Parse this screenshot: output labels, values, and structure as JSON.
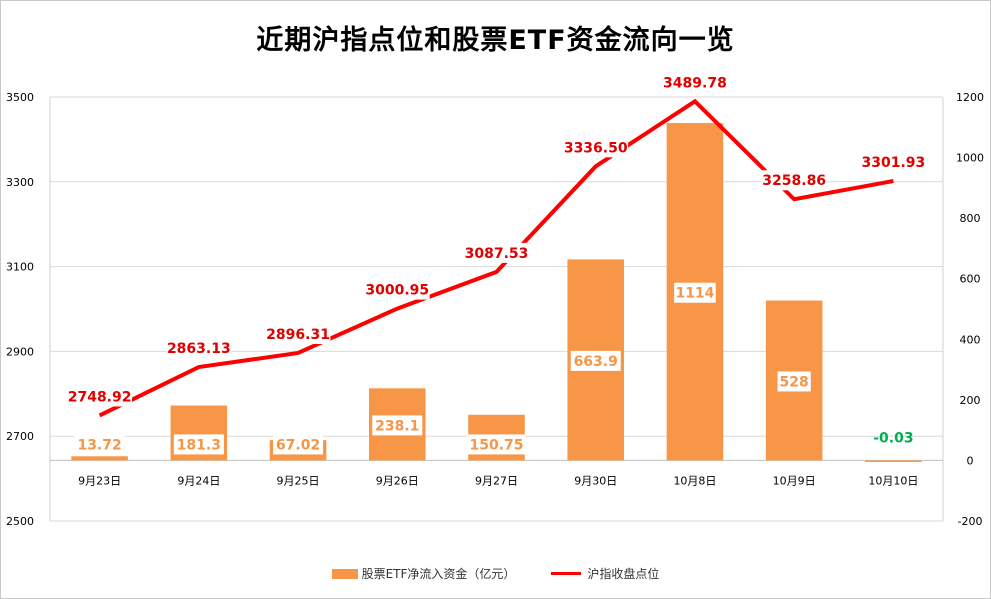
{
  "chart_data": {
    "type": "bar+line",
    "title": "近期沪指点位和股票ETF资金流向一览",
    "categories": [
      "9月23日",
      "9月24日",
      "9月25日",
      "9月26日",
      "9月27日",
      "9月30日",
      "10月8日",
      "10月9日",
      "10月10日"
    ],
    "series": [
      {
        "name": "股票ETF净流入资金（亿元）",
        "type": "bar",
        "axis": "right",
        "values": [
          13.72,
          181.3,
          67.02,
          238.1,
          150.75,
          663.9,
          1114,
          528,
          -0.03
        ],
        "labels": [
          "13.72",
          "181.3",
          "67.02",
          "238.1",
          "150.75",
          "663.9",
          "1114",
          "528",
          "-0.03"
        ]
      },
      {
        "name": "沪指收盘点位",
        "type": "line",
        "axis": "left",
        "values": [
          2748.92,
          2863.13,
          2896.31,
          3000.95,
          3087.53,
          3336.5,
          3489.78,
          3258.86,
          3301.93
        ],
        "labels": [
          "2748.92",
          "2863.13",
          "2896.31",
          "3000.95",
          "3087.53",
          "3336.50",
          "3489.78",
          "3258.86",
          "3301.93"
        ]
      }
    ],
    "y_left": {
      "min": 2500,
      "max": 3500,
      "ticks": [
        "2500",
        "2700",
        "2900",
        "3100",
        "3300",
        "3500"
      ]
    },
    "y_right": {
      "min": -200,
      "max": 1200,
      "ticks": [
        "-200",
        "0",
        "200",
        "400",
        "600",
        "800",
        "1000",
        "1200"
      ]
    },
    "grid": true,
    "legend_position": "bottom",
    "colors": {
      "bar": "#f79646",
      "line": "#ff0000",
      "line_label": "#e00000",
      "bar_label": "#f79646",
      "negative_label": "#00b050",
      "grid": "#d9d9d9"
    }
  }
}
